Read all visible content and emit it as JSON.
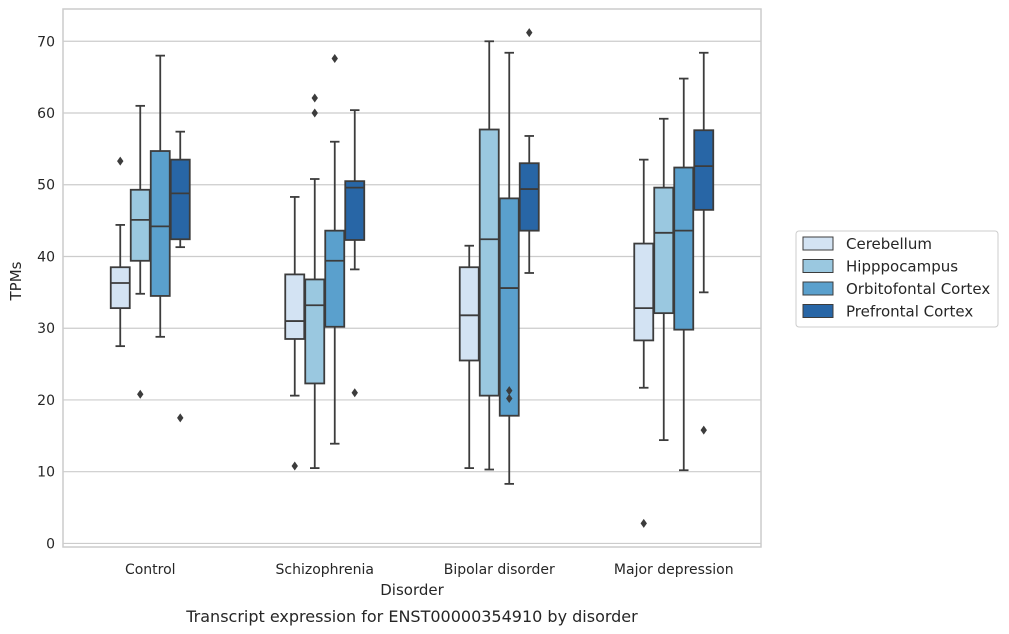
{
  "chart_data": {
    "type": "box",
    "title": "",
    "caption": "Transcript expression for ENST00000354910 by disorder",
    "xlabel": "Disorder",
    "ylabel": "TPMs",
    "ylim": [
      -0.5,
      74.5
    ],
    "yticks": [
      0,
      10,
      20,
      30,
      40,
      50,
      60,
      70
    ],
    "grid": "horizontal",
    "legend_position": "right",
    "categories": [
      "Control",
      "Schizophrenia",
      "Bipolar disorder",
      "Major depression"
    ],
    "series": [
      {
        "name": "Cerebellum",
        "color": "#d3e3f3",
        "boxes": [
          {
            "whisker_low": 27.5,
            "q1": 32.8,
            "median": 36.3,
            "q3": 38.5,
            "whisker_high": 44.4,
            "outliers": [
              53.3
            ]
          },
          {
            "whisker_low": 20.6,
            "q1": 28.5,
            "median": 31.0,
            "q3": 37.5,
            "whisker_high": 48.3,
            "outliers": [
              10.8
            ]
          },
          {
            "whisker_low": 10.5,
            "q1": 25.5,
            "median": 31.8,
            "q3": 38.5,
            "whisker_high": 41.5,
            "outliers": []
          },
          {
            "whisker_low": 21.7,
            "q1": 28.3,
            "median": 32.8,
            "q3": 41.8,
            "whisker_high": 53.5,
            "outliers": [
              2.8
            ]
          }
        ]
      },
      {
        "name": "Hipppocampus",
        "color": "#9ac8e0",
        "boxes": [
          {
            "whisker_low": 34.8,
            "q1": 39.4,
            "median": 45.1,
            "q3": 49.3,
            "whisker_high": 61.0,
            "outliers": [
              20.8
            ]
          },
          {
            "whisker_low": 10.5,
            "q1": 22.3,
            "median": 33.2,
            "q3": 36.8,
            "whisker_high": 50.8,
            "outliers": [
              60.0,
              62.1
            ]
          },
          {
            "whisker_low": 10.3,
            "q1": 20.6,
            "median": 42.4,
            "q3": 57.7,
            "whisker_high": 70.0,
            "outliers": []
          },
          {
            "whisker_low": 14.4,
            "q1": 32.1,
            "median": 43.3,
            "q3": 49.6,
            "whisker_high": 59.2,
            "outliers": []
          }
        ]
      },
      {
        "name": "Orbitofontal Cortex",
        "color": "#5aa0cd",
        "boxes": [
          {
            "whisker_low": 28.8,
            "q1": 34.5,
            "median": 44.2,
            "q3": 54.7,
            "whisker_high": 68.0,
            "outliers": []
          },
          {
            "whisker_low": 13.9,
            "q1": 30.2,
            "median": 39.4,
            "q3": 43.6,
            "whisker_high": 56.0,
            "outliers": [
              67.6
            ]
          },
          {
            "whisker_low": 8.3,
            "q1": 17.8,
            "median": 35.6,
            "q3": 48.1,
            "whisker_high": 68.4,
            "outliers": [
              20.2,
              21.3
            ]
          },
          {
            "whisker_low": 10.2,
            "q1": 29.8,
            "median": 43.6,
            "q3": 52.4,
            "whisker_high": 64.8,
            "outliers": []
          }
        ]
      },
      {
        "name": "Prefrontal Cortex",
        "color": "#2866a6",
        "boxes": [
          {
            "whisker_low": 41.3,
            "q1": 42.4,
            "median": 48.8,
            "q3": 53.5,
            "whisker_high": 57.4,
            "outliers": [
              17.5
            ]
          },
          {
            "whisker_low": 38.2,
            "q1": 42.3,
            "median": 49.6,
            "q3": 50.5,
            "whisker_high": 60.4,
            "outliers": [
              21.0
            ]
          },
          {
            "whisker_low": 37.7,
            "q1": 43.6,
            "median": 49.4,
            "q3": 53.0,
            "whisker_high": 56.8,
            "outliers": [
              71.2
            ]
          },
          {
            "whisker_low": 35.0,
            "q1": 46.5,
            "median": 52.6,
            "q3": 57.6,
            "whisker_high": 68.4,
            "outliers": [
              15.8
            ]
          }
        ]
      }
    ]
  }
}
